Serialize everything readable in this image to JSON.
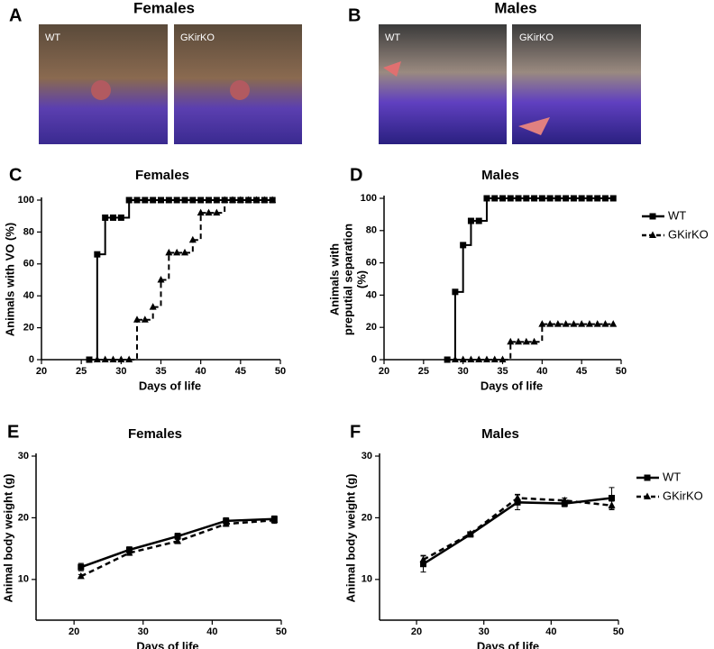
{
  "photos": [
    {
      "panel": "A",
      "title": "Females",
      "labels": [
        "WT",
        "GKirKO"
      ]
    },
    {
      "panel": "B",
      "title": "Males",
      "labels": [
        "WT",
        "GKirKO"
      ]
    }
  ],
  "chart_data": [
    {
      "type": "line",
      "step": true,
      "panel": "C",
      "title": "Females",
      "x_label": "Days of life",
      "y_label": [
        "Animals with VO (%)"
      ],
      "xlim": [
        20,
        50
      ],
      "xticks": [
        20,
        25,
        30,
        35,
        40,
        45,
        50
      ],
      "ylim": [
        0,
        100
      ],
      "yticks": [
        0,
        20,
        40,
        60,
        80,
        100
      ],
      "legend": false,
      "series": [
        {
          "color": "#000000",
          "marker": "square",
          "dashed": false,
          "x": [
            26,
            27,
            28,
            29,
            30,
            31,
            32,
            33,
            34,
            35,
            36,
            37,
            38,
            39,
            40,
            41,
            42,
            43,
            44,
            45,
            46,
            47,
            48,
            49
          ],
          "values": [
            0,
            66,
            89,
            89,
            89,
            100,
            100,
            100,
            100,
            100,
            100,
            100,
            100,
            100,
            100,
            100,
            100,
            100,
            100,
            100,
            100,
            100,
            100,
            100
          ]
        },
        {
          "color": "#000000",
          "marker": "triangle",
          "dashed": true,
          "x": [
            27,
            28,
            29,
            30,
            31,
            32,
            33,
            34,
            35,
            36,
            37,
            38,
            39,
            40,
            41,
            42,
            43,
            44,
            45,
            46,
            47,
            48,
            49
          ],
          "values": [
            0,
            0,
            0,
            0,
            0,
            25,
            25,
            33,
            50,
            67,
            67,
            67,
            75,
            92,
            92,
            92,
            100,
            100,
            100,
            100,
            100,
            100,
            100
          ]
        }
      ]
    },
    {
      "type": "line",
      "step": true,
      "panel": "D",
      "title": "Males",
      "x_label": "Days of life",
      "y_label": [
        "Animals with",
        "preputial separation",
        "(%)"
      ],
      "xlim": [
        20,
        50
      ],
      "xticks": [
        20,
        25,
        30,
        35,
        40,
        45,
        50
      ],
      "ylim": [
        0,
        100
      ],
      "yticks": [
        0,
        20,
        40,
        60,
        80,
        100
      ],
      "legend": "outside-right",
      "series": [
        {
          "name": "WT",
          "color": "#000000",
          "marker": "square",
          "dashed": false,
          "x": [
            28,
            29,
            30,
            31,
            32,
            33,
            34,
            35,
            36,
            37,
            38,
            39,
            40,
            41,
            42,
            43,
            44,
            45,
            46,
            47,
            48,
            49
          ],
          "values": [
            0,
            42,
            71,
            86,
            86,
            100,
            100,
            100,
            100,
            100,
            100,
            100,
            100,
            100,
            100,
            100,
            100,
            100,
            100,
            100,
            100,
            100
          ]
        },
        {
          "name": "GKirKO",
          "color": "#000000",
          "marker": "triangle",
          "dashed": true,
          "x": [
            29,
            30,
            31,
            32,
            33,
            34,
            35,
            36,
            37,
            38,
            39,
            40,
            41,
            42,
            43,
            44,
            45,
            46,
            47,
            48,
            49
          ],
          "values": [
            0,
            0,
            0,
            0,
            0,
            0,
            0,
            11,
            11,
            11,
            11,
            22,
            22,
            22,
            22,
            22,
            22,
            22,
            22,
            22,
            22
          ]
        }
      ]
    },
    {
      "type": "line",
      "step": false,
      "panel": "E",
      "title": "Females",
      "x_label": "Days of life",
      "y_label": [
        "Animal body weight (g)"
      ],
      "xlim": [
        14.5,
        50
      ],
      "xticks": [
        20,
        30,
        40,
        50
      ],
      "ylim": [
        3.4,
        30
      ],
      "yticks": [
        10,
        20,
        30
      ],
      "legend": false,
      "x": [
        21,
        28,
        35,
        42,
        49
      ],
      "series": [
        {
          "color": "#000000",
          "marker": "square",
          "dashed": false,
          "values": [
            12.0,
            14.8,
            17.0,
            19.5,
            19.8
          ],
          "errors": [
            0.6,
            0.5,
            0.5,
            0.5,
            0.5
          ]
        },
        {
          "color": "#000000",
          "marker": "triangle",
          "dashed": true,
          "values": [
            10.5,
            14.3,
            16.2,
            19.0,
            19.6
          ],
          "errors": [
            0.3,
            0.4,
            0.4,
            0.4,
            0.5
          ]
        }
      ]
    },
    {
      "type": "line",
      "step": false,
      "panel": "F",
      "title": "Males",
      "x_label": "Days of life",
      "y_label": [
        "Animal body weight (g)"
      ],
      "xlim": [
        14.5,
        50
      ],
      "xticks": [
        20,
        30,
        40,
        50
      ],
      "ylim": [
        3.4,
        30
      ],
      "yticks": [
        10,
        20,
        30
      ],
      "legend": "top-right",
      "x": [
        21,
        28,
        35,
        42,
        49
      ],
      "series": [
        {
          "name": "WT",
          "color": "#000000",
          "marker": "square",
          "dashed": false,
          "values": [
            12.5,
            17.3,
            22.5,
            22.3,
            23.2
          ],
          "errors": [
            1.3,
            0.3,
            1.2,
            0.5,
            1.7
          ]
        },
        {
          "name": "GKirKO",
          "color": "#000000",
          "marker": "triangle",
          "dashed": true,
          "values": [
            13.2,
            17.4,
            23.2,
            22.8,
            22.0
          ],
          "errors": [
            0.7,
            0.3,
            0.6,
            0.4,
            0.7
          ]
        }
      ]
    }
  ]
}
